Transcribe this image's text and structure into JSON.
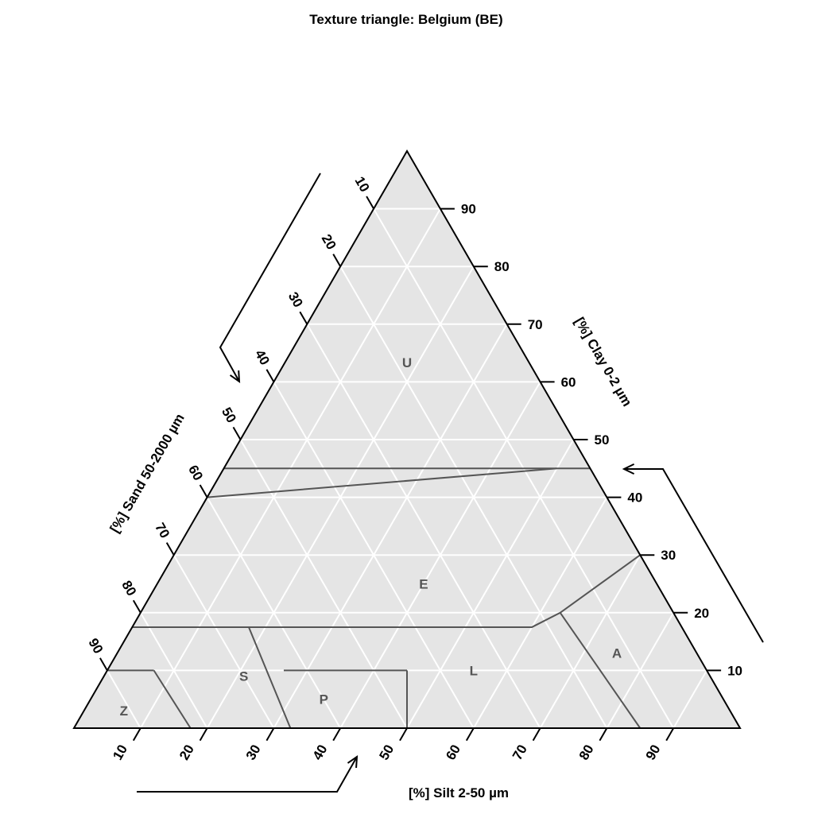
{
  "chart_data": {
    "type": "ternary",
    "title": "Texture triangle: Belgium (BE)",
    "axes": {
      "clay": {
        "label": "[%] Clay 0-2 µm",
        "ticks": [
          10,
          20,
          30,
          40,
          50,
          60,
          70,
          80,
          90
        ]
      },
      "silt": {
        "label": "[%] Silt 2-50 µm",
        "ticks": [
          10,
          20,
          30,
          40,
          50,
          60,
          70,
          80,
          90
        ]
      },
      "sand": {
        "label": "[%] Sand 50-2000 µm",
        "ticks": [
          10,
          20,
          30,
          40,
          50,
          60,
          70,
          80,
          90
        ]
      }
    },
    "grid": true,
    "classes": [
      {
        "name": "U",
        "polygon": [
          [
            100,
            0
          ],
          [
            45,
            0
          ],
          [
            45,
            55
          ]
        ]
      },
      {
        "name": "E",
        "label_at": {
          "clay": 25,
          "silt": 40
        },
        "polygon": [
          [
            45,
            0
          ],
          [
            17.5,
            0
          ],
          [
            17.5,
            17.5
          ],
          [
            20,
            30
          ],
          [
            30,
            40
          ],
          [
            45,
            50
          ]
        ]
      },
      {
        "name": "Z",
        "label_at": {
          "clay": 3,
          "silt": 6
        },
        "polygon": [
          [
            0,
            0
          ],
          [
            8,
            0
          ],
          [
            8,
            7
          ],
          [
            0,
            17.5
          ]
        ]
      },
      {
        "name": "S",
        "label_at": {
          "clay": 9,
          "silt": 21
        },
        "polygon": [
          [
            8,
            0
          ],
          [
            17.5,
            0
          ],
          [
            17.5,
            15
          ],
          [
            0,
            32.5
          ],
          [
            0,
            17.5
          ],
          [
            8,
            7
          ]
        ]
      },
      {
        "name": "P",
        "label_at": {
          "clay": 5,
          "silt": 35
        },
        "polygon": [
          [
            0,
            32.5
          ],
          [
            11,
            26.5
          ],
          [
            11,
            45
          ],
          [
            0,
            50
          ]
        ]
      },
      {
        "name": "L",
        "label_at": {
          "clay": 10,
          "silt": 55
        },
        "polygon": [
          [
            17.5,
            15
          ],
          [
            17.5,
            30
          ],
          [
            17.5,
            35
          ],
          [
            20,
            50
          ],
          [
            0,
            85
          ],
          [
            0,
            50
          ],
          [
            11,
            45
          ],
          [
            11,
            26.5
          ]
        ]
      },
      {
        "name": "A",
        "label_at": {
          "clay": 13,
          "silt": 75
        },
        "polygon": [
          [
            20,
            50
          ],
          [
            30,
            70
          ],
          [
            0,
            100
          ],
          [
            0,
            85
          ]
        ]
      }
    ],
    "boundaries": [
      [
        [
          45,
          55
        ],
        [
          45,
          50
        ],
        [
          40,
          0
        ]
      ],
      [
        [
          45,
          0
        ],
        [
          45,
          50
        ]
      ],
      [
        [
          17.5,
          0
        ],
        [
          17.5,
          60
        ],
        [
          20,
          63
        ],
        [
          30,
          70
        ]
      ],
      [
        [
          20,
          63
        ],
        [
          0,
          85
        ]
      ],
      [
        [
          10,
          0
        ],
        [
          10,
          7
        ]
      ],
      [
        [
          10,
          7
        ],
        [
          0,
          17.5
        ]
      ],
      [
        [
          17.5,
          17.5
        ],
        [
          0,
          32.5
        ]
      ],
      [
        [
          10,
          26.5
        ],
        [
          10,
          45
        ]
      ],
      [
        [
          10,
          45
        ],
        [
          0,
          50
        ]
      ]
    ]
  }
}
